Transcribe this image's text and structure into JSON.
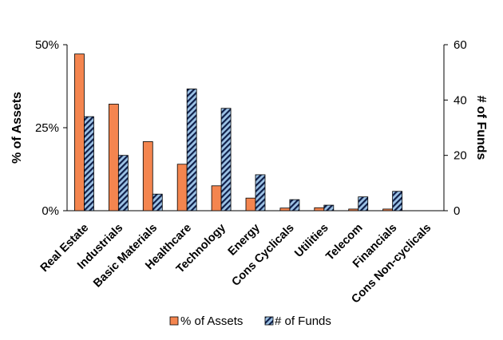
{
  "chart_data": {
    "type": "bar",
    "categories": [
      "Real Estate",
      "Industrials",
      "Basic Materials",
      "Healthcare",
      "Technology",
      "Energy",
      "Cons Cyclicals",
      "Utilities",
      "Telecom",
      "Financials",
      "Cons Non-cyclicals"
    ],
    "series": [
      {
        "name": "% of Assets",
        "axis": "left",
        "color": "#F4854F",
        "values": [
          47.2,
          32.1,
          20.8,
          14.0,
          7.5,
          3.8,
          0.8,
          0.9,
          0.5,
          0.5,
          0
        ]
      },
      {
        "name": "# of Funds",
        "axis": "right",
        "color": "#9DC3E6",
        "pattern": "diagonal-hatch",
        "values": [
          34,
          20,
          6,
          44,
          37,
          13,
          4,
          2,
          5,
          7,
          0
        ]
      }
    ],
    "y_left": {
      "label": "% of Assets",
      "ylim": [
        0,
        50
      ],
      "ticks": [
        0,
        25,
        50
      ],
      "tick_labels": [
        "0%",
        "25%",
        "50%"
      ]
    },
    "y_right": {
      "label": "# of Funds",
      "ylim": [
        0,
        60
      ],
      "ticks": [
        0,
        20,
        40,
        60
      ],
      "tick_labels": [
        "0",
        "20",
        "40",
        "60"
      ]
    },
    "legend_position": "bottom",
    "grid": false
  }
}
